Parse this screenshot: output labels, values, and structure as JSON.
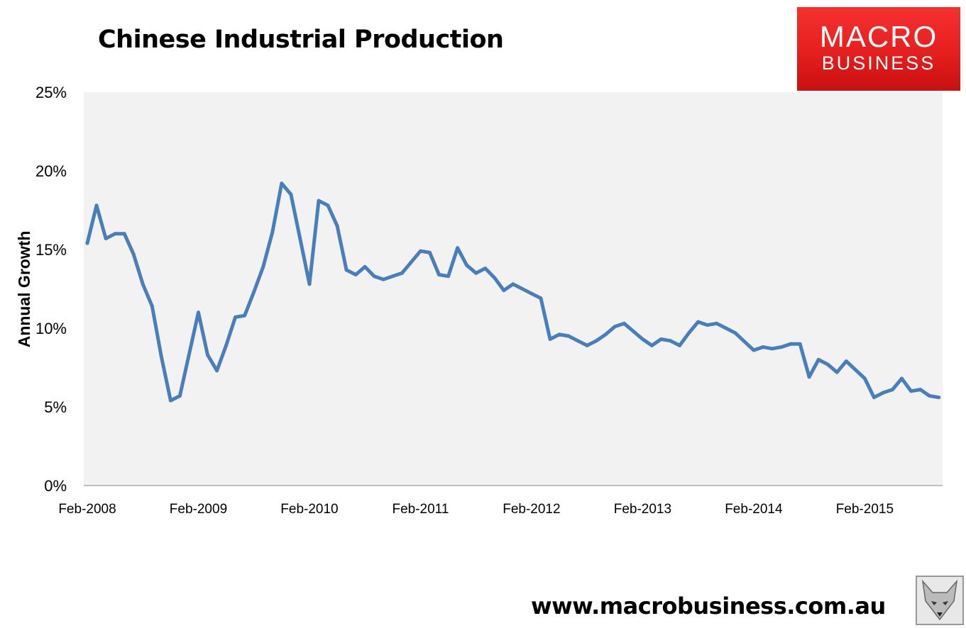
{
  "chart_data": {
    "type": "line",
    "title": "Chinese Industrial Production",
    "xlabel": "",
    "ylabel": "Annual Growth",
    "ylim": [
      0,
      25
    ],
    "yticks": [
      0,
      5,
      10,
      15,
      20,
      25
    ],
    "ytick_labels": [
      "0%",
      "5%",
      "10%",
      "15%",
      "20%",
      "25%"
    ],
    "xticks": [
      "2008-02",
      "2009-02",
      "2010-02",
      "2011-02",
      "2012-02",
      "2013-02",
      "2014-02",
      "2015-02"
    ],
    "xtick_labels": [
      "Feb-2008",
      "Feb-2009",
      "Feb-2010",
      "Feb-2011",
      "Feb-2012",
      "Feb-2013",
      "Feb-2014",
      "Feb-2015"
    ],
    "xlim": [
      "2008-02",
      "2015-10"
    ],
    "grid": false,
    "legend": "none",
    "series": [
      {
        "name": "Annual Growth",
        "color": "#4a7ebb",
        "points": [
          [
            "2008-02",
            15.4
          ],
          [
            "2008-03",
            17.8
          ],
          [
            "2008-04",
            15.7
          ],
          [
            "2008-05",
            16.0
          ],
          [
            "2008-06",
            16.0
          ],
          [
            "2008-07",
            14.7
          ],
          [
            "2008-08",
            12.8
          ],
          [
            "2008-09",
            11.4
          ],
          [
            "2008-10",
            8.2
          ],
          [
            "2008-11",
            5.4
          ],
          [
            "2008-12",
            5.7
          ],
          [
            "2009-02",
            11.0
          ],
          [
            "2009-03",
            8.3
          ],
          [
            "2009-04",
            7.3
          ],
          [
            "2009-05",
            8.9
          ],
          [
            "2009-06",
            10.7
          ],
          [
            "2009-07",
            10.8
          ],
          [
            "2009-08",
            12.3
          ],
          [
            "2009-09",
            13.9
          ],
          [
            "2009-10",
            16.1
          ],
          [
            "2009-11",
            19.2
          ],
          [
            "2009-12",
            18.5
          ],
          [
            "2010-02",
            12.8
          ],
          [
            "2010-03",
            18.1
          ],
          [
            "2010-04",
            17.8
          ],
          [
            "2010-05",
            16.5
          ],
          [
            "2010-06",
            13.7
          ],
          [
            "2010-07",
            13.4
          ],
          [
            "2010-08",
            13.9
          ],
          [
            "2010-09",
            13.3
          ],
          [
            "2010-10",
            13.1
          ],
          [
            "2010-11",
            13.3
          ],
          [
            "2010-12",
            13.5
          ],
          [
            "2011-02",
            14.9
          ],
          [
            "2011-03",
            14.8
          ],
          [
            "2011-04",
            13.4
          ],
          [
            "2011-05",
            13.3
          ],
          [
            "2011-06",
            15.1
          ],
          [
            "2011-07",
            14.0
          ],
          [
            "2011-08",
            13.5
          ],
          [
            "2011-09",
            13.8
          ],
          [
            "2011-10",
            13.2
          ],
          [
            "2011-11",
            12.4
          ],
          [
            "2011-12",
            12.8
          ],
          [
            "2012-02",
            12.2
          ],
          [
            "2012-03",
            11.9
          ],
          [
            "2012-04",
            9.3
          ],
          [
            "2012-05",
            9.6
          ],
          [
            "2012-06",
            9.5
          ],
          [
            "2012-07",
            9.2
          ],
          [
            "2012-08",
            8.9
          ],
          [
            "2012-09",
            9.2
          ],
          [
            "2012-10",
            9.6
          ],
          [
            "2012-11",
            10.1
          ],
          [
            "2012-12",
            10.3
          ],
          [
            "2013-02",
            9.3
          ],
          [
            "2013-03",
            8.9
          ],
          [
            "2013-04",
            9.3
          ],
          [
            "2013-05",
            9.2
          ],
          [
            "2013-06",
            8.9
          ],
          [
            "2013-07",
            9.7
          ],
          [
            "2013-08",
            10.4
          ],
          [
            "2013-09",
            10.2
          ],
          [
            "2013-10",
            10.3
          ],
          [
            "2013-11",
            10.0
          ],
          [
            "2013-12",
            9.7
          ],
          [
            "2014-02",
            8.6
          ],
          [
            "2014-03",
            8.8
          ],
          [
            "2014-04",
            8.7
          ],
          [
            "2014-05",
            8.8
          ],
          [
            "2014-06",
            9.0
          ],
          [
            "2014-07",
            9.0
          ],
          [
            "2014-08",
            6.9
          ],
          [
            "2014-09",
            8.0
          ],
          [
            "2014-10",
            7.7
          ],
          [
            "2014-11",
            7.2
          ],
          [
            "2014-12",
            7.9
          ],
          [
            "2015-02",
            6.8
          ],
          [
            "2015-03",
            5.6
          ],
          [
            "2015-04",
            5.9
          ],
          [
            "2015-05",
            6.1
          ],
          [
            "2015-06",
            6.8
          ],
          [
            "2015-07",
            6.0
          ],
          [
            "2015-08",
            6.1
          ],
          [
            "2015-09",
            5.7
          ],
          [
            "2015-10",
            5.6
          ]
        ]
      }
    ]
  },
  "logo": {
    "line1": "MACRO",
    "line2": "BUSINESS"
  },
  "footer": {
    "url": "www.macrobusiness.com.au"
  }
}
